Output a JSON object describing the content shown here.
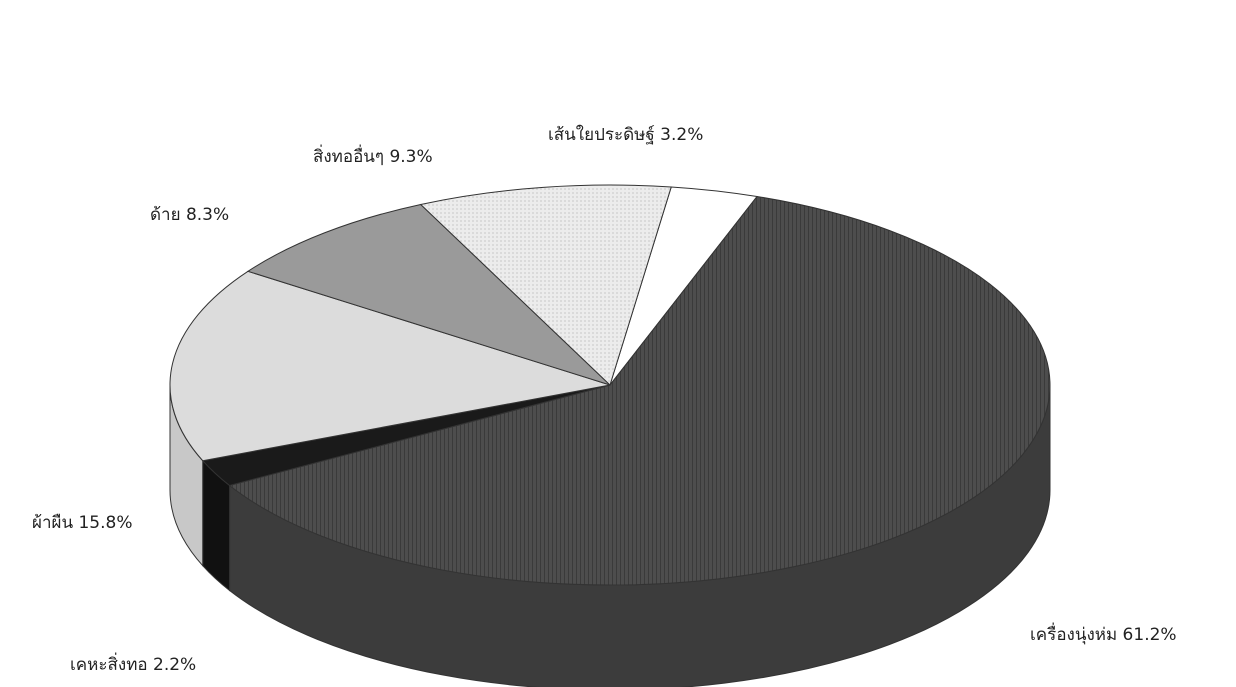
{
  "chart_data": {
    "type": "pie",
    "style": "3d-exploded",
    "title": "",
    "slices": [
      {
        "label": "เส้นใยประดิษฐ์",
        "value": 3.2,
        "text": "เส้นใยประดิษฐ์ 3.2%",
        "color": "#ffffff"
      },
      {
        "label": "เครื่องนุ่งห่ม",
        "value": 61.2,
        "text": "เครื่องนุ่งห่ม 61.2%",
        "color": "#4a4a4a"
      },
      {
        "label": "เคหะสิ่งทอ",
        "value": 2.2,
        "text": "เคหะสิ่งทอ 2.2%",
        "color": "#1a1a1a"
      },
      {
        "label": "ผ้าผืน",
        "value": 15.8,
        "text": "ผ้าผืน 15.8%",
        "color": "#dcdcdc"
      },
      {
        "label": "ด้าย",
        "value": 8.3,
        "text": "ด้าย 8.3%",
        "color": "#9a9a9a"
      },
      {
        "label": "สิ่งทออื่นๆ",
        "value": 9.3,
        "text": "สิ่งทออื่นๆ 9.3%",
        "color": "#e8e8e8"
      }
    ]
  }
}
